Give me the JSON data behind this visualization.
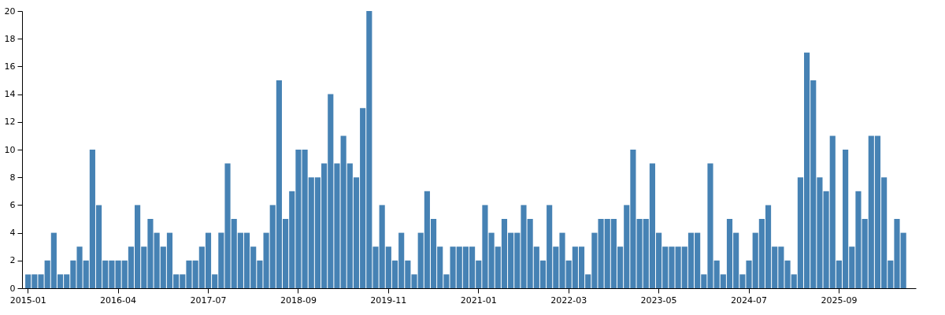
{
  "chart_data": {
    "type": "bar",
    "categories": [
      "2015-01",
      null,
      null,
      null,
      null,
      null,
      null,
      null,
      null,
      null,
      null,
      null,
      null,
      null,
      "2016-04",
      null,
      null,
      null,
      null,
      null,
      null,
      null,
      null,
      null,
      null,
      null,
      null,
      null,
      "2017-07",
      null,
      null,
      null,
      null,
      null,
      null,
      null,
      null,
      null,
      null,
      null,
      null,
      null,
      "2018-09",
      null,
      null,
      null,
      null,
      null,
      null,
      null,
      null,
      null,
      null,
      null,
      null,
      null,
      "2019-11",
      null,
      null,
      null,
      null,
      null,
      null,
      null,
      null,
      null,
      null,
      null,
      null,
      null,
      "2021-01",
      null,
      null,
      null,
      null,
      null,
      null,
      null,
      null,
      null,
      null,
      null,
      null,
      null,
      "2022-03",
      null,
      null,
      null,
      null,
      null,
      null,
      null,
      null,
      null,
      null,
      null,
      null,
      null,
      "2023-05",
      null,
      null,
      null,
      null,
      null,
      null,
      null,
      null,
      null,
      null,
      null,
      null,
      null,
      "2024-07",
      null,
      null,
      null,
      null,
      null,
      null,
      null,
      null,
      null,
      null,
      null,
      null,
      null,
      "2025-09",
      null,
      null,
      null,
      null,
      null,
      null,
      null,
      null,
      null,
      null
    ],
    "values": [
      1,
      1,
      1,
      2,
      4,
      1,
      1,
      2,
      3,
      2,
      10,
      6,
      2,
      2,
      2,
      2,
      3,
      6,
      3,
      5,
      4,
      3,
      4,
      1,
      1,
      2,
      2,
      3,
      4,
      1,
      4,
      9,
      5,
      4,
      4,
      3,
      2,
      4,
      6,
      15,
      5,
      7,
      10,
      10,
      8,
      8,
      9,
      14,
      9,
      11,
      9,
      8,
      13,
      20,
      3,
      6,
      3,
      2,
      4,
      2,
      1,
      4,
      7,
      5,
      3,
      1,
      3,
      3,
      3,
      3,
      2,
      6,
      4,
      3,
      5,
      4,
      4,
      6,
      5,
      3,
      2,
      6,
      3,
      4,
      2,
      3,
      3,
      1,
      4,
      5,
      5,
      5,
      3,
      6,
      10,
      5,
      5,
      9,
      4,
      3,
      3,
      3,
      3,
      4,
      4,
      1,
      9,
      2,
      1,
      5,
      4,
      1,
      2,
      4,
      5,
      6,
      3,
      3,
      2,
      1,
      8,
      17,
      15,
      8,
      7,
      11,
      2,
      10,
      3,
      7,
      5,
      11,
      11,
      8,
      2,
      5,
      4
    ],
    "color": "#4682b4",
    "ylim": [
      0,
      20
    ],
    "yticks": [
      0,
      2,
      4,
      6,
      8,
      10,
      12,
      14,
      16,
      18,
      20
    ],
    "grid": false
  }
}
